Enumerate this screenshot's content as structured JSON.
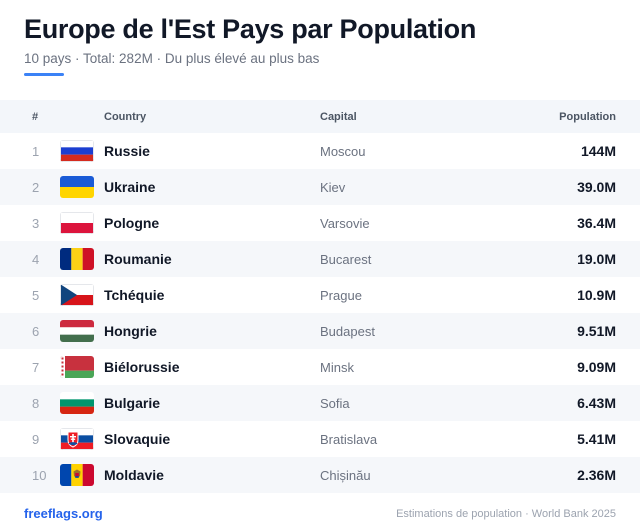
{
  "title": "Europe de l'Est Pays par Population",
  "subtitle": "10 pays · Total: 282M · Du plus élevé au plus bas",
  "accent_color": "#3b82f6",
  "columns": {
    "rank": "#",
    "country": "Country",
    "capital": "Capital",
    "population": "Population"
  },
  "rows": [
    {
      "rank": "1",
      "country": "Russie",
      "capital": "Moscou",
      "population": "144M",
      "flag_icon": "russia-flag-icon"
    },
    {
      "rank": "2",
      "country": "Ukraine",
      "capital": "Kiev",
      "population": "39.0M",
      "flag_icon": "ukraine-flag-icon"
    },
    {
      "rank": "3",
      "country": "Pologne",
      "capital": "Varsovie",
      "population": "36.4M",
      "flag_icon": "poland-flag-icon"
    },
    {
      "rank": "4",
      "country": "Roumanie",
      "capital": "Bucarest",
      "population": "19.0M",
      "flag_icon": "romania-flag-icon"
    },
    {
      "rank": "5",
      "country": "Tchéquie",
      "capital": "Prague",
      "population": "10.9M",
      "flag_icon": "czechia-flag-icon"
    },
    {
      "rank": "6",
      "country": "Hongrie",
      "capital": "Budapest",
      "population": "9.51M",
      "flag_icon": "hungary-flag-icon"
    },
    {
      "rank": "7",
      "country": "Biélorussie",
      "capital": "Minsk",
      "population": "9.09M",
      "flag_icon": "belarus-flag-icon"
    },
    {
      "rank": "8",
      "country": "Bulgarie",
      "capital": "Sofia",
      "population": "6.43M",
      "flag_icon": "bulgaria-flag-icon"
    },
    {
      "rank": "9",
      "country": "Slovaquie",
      "capital": "Bratislava",
      "population": "5.41M",
      "flag_icon": "slovakia-flag-icon"
    },
    {
      "rank": "10",
      "country": "Moldavie",
      "capital": "Chișinău",
      "population": "2.36M",
      "flag_icon": "moldova-flag-icon"
    }
  ],
  "footer": {
    "brand": "freeflags.org",
    "source": "Estimations de population · World Bank 2025"
  }
}
